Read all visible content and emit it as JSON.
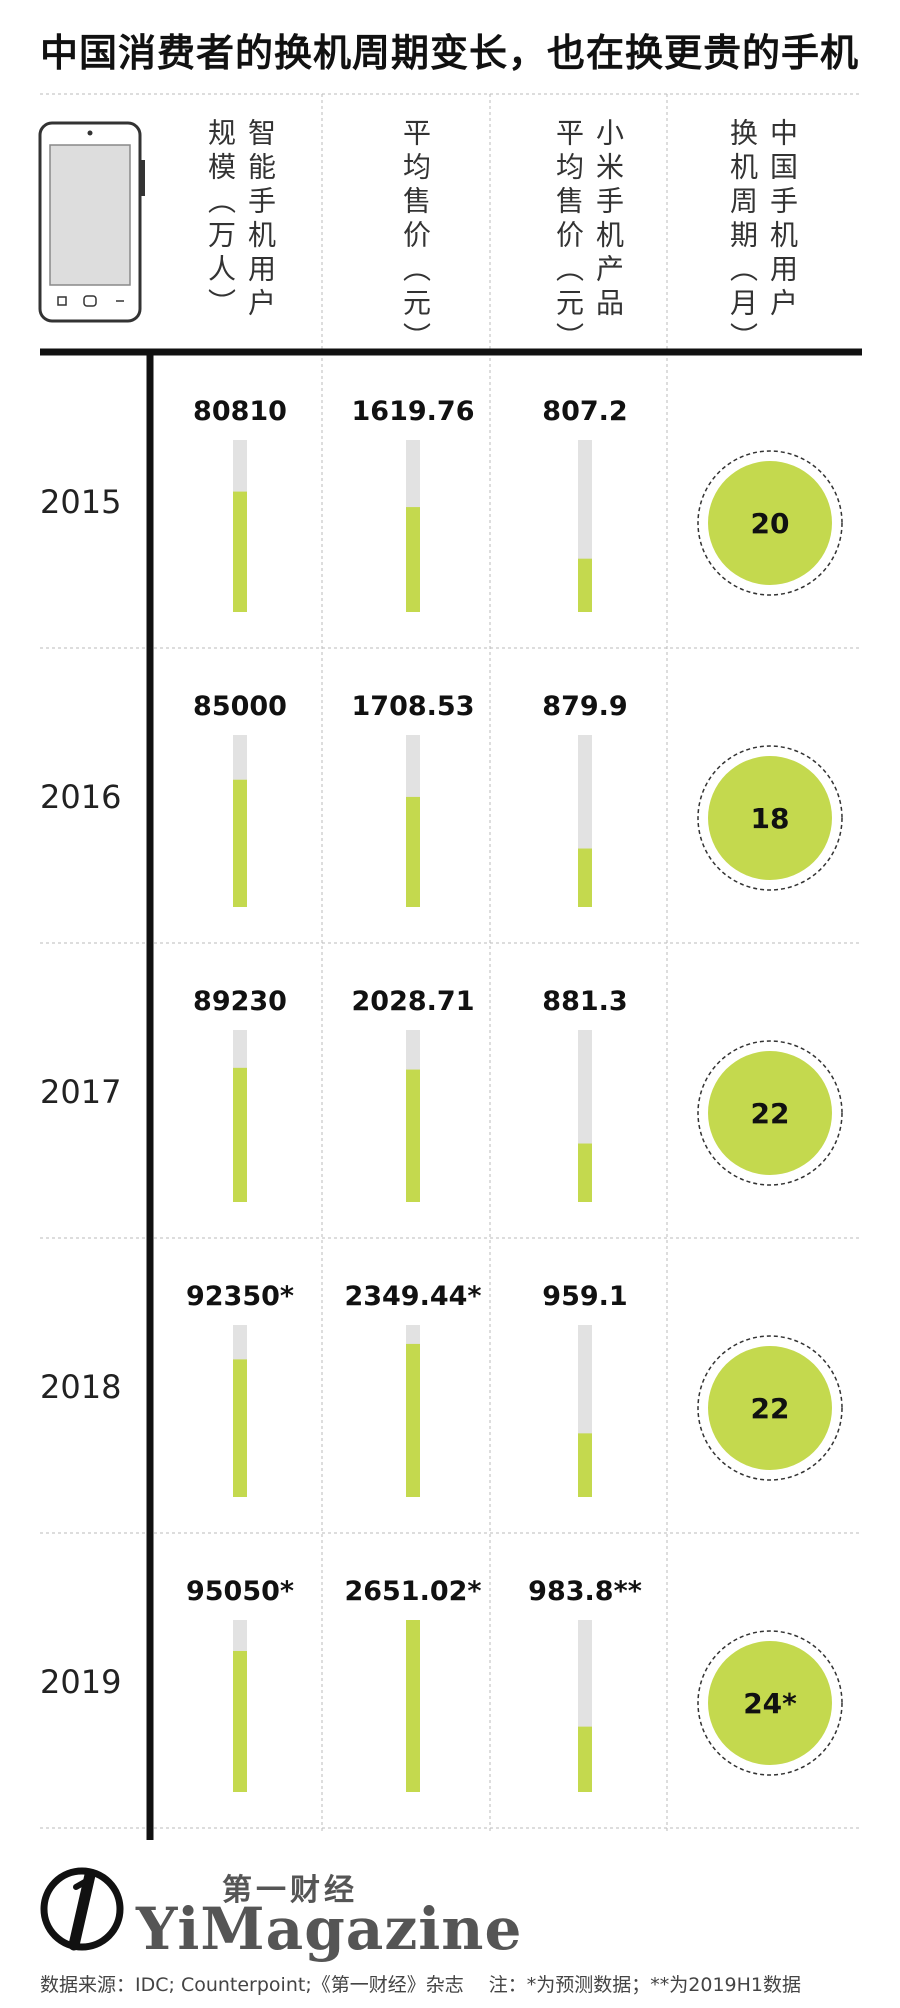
{
  "title": "中国消费者的换机周期变长，也在换更贵的手机",
  "columns": [
    {
      "label": "智能手机用户规模（万人）"
    },
    {
      "label": "平均售价（元）"
    },
    {
      "label": "小米手机产品平均售价（元）"
    },
    {
      "label": "中国手机用户换机周期（月）"
    }
  ],
  "colors": {
    "bar_fill": "#c4d94e",
    "bar_track": "#e2e2e2",
    "circle_fill": "#c4d94e",
    "rule": "#111111",
    "grid": "#cccccc"
  },
  "chart_data": {
    "type": "table",
    "years": [
      "2015",
      "2016",
      "2017",
      "2018",
      "2019"
    ],
    "series": [
      {
        "name": "智能手机用户规模（万人）",
        "values": [
          80810,
          85000,
          89230,
          92350,
          95050
        ],
        "labels": [
          "80810",
          "85000",
          "89230",
          "92350*",
          "95050*"
        ],
        "bar_fraction": [
          0.7,
          0.74,
          0.78,
          0.8,
          0.82
        ]
      },
      {
        "name": "平均售价（元）",
        "values": [
          1619.76,
          1708.53,
          2028.71,
          2349.44,
          2651.02
        ],
        "labels": [
          "1619.76",
          "1708.53",
          "2028.71",
          "2349.44*",
          "2651.02*"
        ],
        "bar_fraction": [
          0.61,
          0.64,
          0.77,
          0.89,
          1.0
        ]
      },
      {
        "name": "小米手机产品平均售价（元）",
        "values": [
          807.2,
          879.9,
          881.3,
          959.1,
          983.8
        ],
        "labels": [
          "807.2",
          "879.9",
          "881.3",
          "959.1",
          "983.8**"
        ],
        "bar_fraction": [
          0.31,
          0.34,
          0.34,
          0.37,
          0.38
        ]
      },
      {
        "name": "中国手机用户换机周期（月）",
        "values": [
          20,
          18,
          22,
          22,
          24
        ],
        "labels": [
          "20",
          "18",
          "22",
          "22",
          "24*"
        ]
      }
    ]
  },
  "logo": {
    "cn": "第一财经",
    "en": "YiMagazine"
  },
  "footnote": "数据来源：IDC; Counterpoint;《第一财经》杂志　 注：*为预测数据；**为2019H1数据"
}
